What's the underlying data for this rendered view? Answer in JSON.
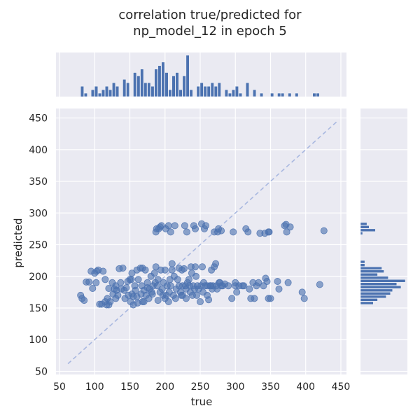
{
  "chart_data": {
    "type": "scatter",
    "title_lines": [
      "correlation true/predicted for",
      "np_model_12 in epoch 5"
    ],
    "xlabel": "true",
    "ylabel": "predicted",
    "xlim": [
      45,
      458
    ],
    "ylim": [
      45,
      465
    ],
    "xticks": [
      50,
      100,
      150,
      200,
      250,
      300,
      350,
      400,
      450
    ],
    "yticks": [
      50,
      100,
      150,
      200,
      250,
      300,
      350,
      400,
      450
    ],
    "grid": true,
    "identity_line": {
      "from": [
        62,
        62
      ],
      "to": [
        445,
        445
      ]
    },
    "colors": {
      "background": "#eaeaf2",
      "grid": "#ffffff",
      "points": "#4c72b0",
      "bars": "#4c72b0",
      "identity_line": "#a9b8e0",
      "text": "#262626"
    },
    "points": [
      [
        80,
        170
      ],
      [
        82,
        165
      ],
      [
        85,
        162
      ],
      [
        88,
        191
      ],
      [
        92,
        191
      ],
      [
        95,
        208
      ],
      [
        97,
        181
      ],
      [
        100,
        205
      ],
      [
        102,
        190
      ],
      [
        103,
        208
      ],
      [
        105,
        210
      ],
      [
        107,
        156
      ],
      [
        110,
        156
      ],
      [
        112,
        208
      ],
      [
        115,
        195
      ],
      [
        115,
        160
      ],
      [
        117,
        155
      ],
      [
        118,
        165
      ],
      [
        120,
        181
      ],
      [
        120,
        155
      ],
      [
        122,
        160
      ],
      [
        125,
        190
      ],
      [
        126,
        172
      ],
      [
        128,
        180
      ],
      [
        130,
        165
      ],
      [
        130,
        185
      ],
      [
        131,
        178
      ],
      [
        133,
        170
      ],
      [
        135,
        212
      ],
      [
        137,
        190
      ],
      [
        138,
        180
      ],
      [
        140,
        213
      ],
      [
        142,
        178
      ],
      [
        143,
        165
      ],
      [
        145,
        182
      ],
      [
        147,
        192
      ],
      [
        148,
        170
      ],
      [
        150,
        195
      ],
      [
        151,
        160
      ],
      [
        152,
        195
      ],
      [
        153,
        205
      ],
      [
        153,
        172
      ],
      [
        155,
        155
      ],
      [
        155,
        168
      ],
      [
        157,
        185
      ],
      [
        158,
        178
      ],
      [
        160,
        210
      ],
      [
        160,
        168
      ],
      [
        161,
        158
      ],
      [
        162,
        195
      ],
      [
        165,
        213
      ],
      [
        166,
        172
      ],
      [
        167,
        185
      ],
      [
        168,
        160
      ],
      [
        168,
        213
      ],
      [
        170,
        178
      ],
      [
        170,
        160
      ],
      [
        172,
        210
      ],
      [
        173,
        170
      ],
      [
        175,
        190
      ],
      [
        175,
        182
      ],
      [
        177,
        165
      ],
      [
        178,
        180
      ],
      [
        180,
        200
      ],
      [
        181,
        175
      ],
      [
        182,
        172
      ],
      [
        183,
        185
      ],
      [
        185,
        205
      ],
      [
        186,
        190
      ],
      [
        187,
        270
      ],
      [
        187,
        215
      ],
      [
        188,
        275
      ],
      [
        189,
        185
      ],
      [
        190,
        162
      ],
      [
        190,
        195
      ],
      [
        191,
        275
      ],
      [
        193,
        278
      ],
      [
        193,
        175
      ],
      [
        194,
        210
      ],
      [
        195,
        280
      ],
      [
        196,
        180
      ],
      [
        197,
        170
      ],
      [
        198,
        190
      ],
      [
        200,
        210
      ],
      [
        200,
        165
      ],
      [
        201,
        275
      ],
      [
        202,
        170
      ],
      [
        203,
        185
      ],
      [
        205,
        160
      ],
      [
        205,
        280
      ],
      [
        206,
        175
      ],
      [
        207,
        195
      ],
      [
        208,
        270
      ],
      [
        208,
        185
      ],
      [
        210,
        210
      ],
      [
        210,
        220
      ],
      [
        212,
        170
      ],
      [
        213,
        200
      ],
      [
        214,
        280
      ],
      [
        215,
        165
      ],
      [
        216,
        180
      ],
      [
        218,
        195
      ],
      [
        220,
        185
      ],
      [
        220,
        213
      ],
      [
        222,
        175
      ],
      [
        223,
        170
      ],
      [
        224,
        210
      ],
      [
        225,
        185
      ],
      [
        225,
        170
      ],
      [
        227,
        212
      ],
      [
        228,
        280
      ],
      [
        229,
        185
      ],
      [
        230,
        180
      ],
      [
        230,
        165
      ],
      [
        231,
        270
      ],
      [
        232,
        190
      ],
      [
        234,
        195
      ],
      [
        235,
        185
      ],
      [
        236,
        175
      ],
      [
        237,
        215
      ],
      [
        238,
        205
      ],
      [
        239,
        170
      ],
      [
        240,
        185
      ],
      [
        241,
        280
      ],
      [
        242,
        180
      ],
      [
        243,
        215
      ],
      [
        243,
        275
      ],
      [
        244,
        200
      ],
      [
        245,
        170
      ],
      [
        246,
        185
      ],
      [
        248,
        180
      ],
      [
        250,
        160
      ],
      [
        251,
        185
      ],
      [
        252,
        283
      ],
      [
        253,
        215
      ],
      [
        254,
        175
      ],
      [
        255,
        190
      ],
      [
        256,
        275
      ],
      [
        257,
        185
      ],
      [
        258,
        280
      ],
      [
        260,
        170
      ],
      [
        260,
        185
      ],
      [
        262,
        163
      ],
      [
        264,
        185
      ],
      [
        265,
        185
      ],
      [
        266,
        210
      ],
      [
        267,
        180
      ],
      [
        268,
        185
      ],
      [
        270,
        270
      ],
      [
        270,
        215
      ],
      [
        272,
        220
      ],
      [
        273,
        185
      ],
      [
        274,
        180
      ],
      [
        275,
        270
      ],
      [
        276,
        275
      ],
      [
        277,
        190
      ],
      [
        278,
        190
      ],
      [
        280,
        185
      ],
      [
        280,
        272
      ],
      [
        282,
        185
      ],
      [
        285,
        188
      ],
      [
        290,
        185
      ],
      [
        295,
        165
      ],
      [
        297,
        270
      ],
      [
        300,
        185
      ],
      [
        300,
        190
      ],
      [
        302,
        175
      ],
      [
        305,
        185
      ],
      [
        310,
        185
      ],
      [
        312,
        185
      ],
      [
        315,
        275
      ],
      [
        318,
        270
      ],
      [
        320,
        180
      ],
      [
        322,
        165
      ],
      [
        325,
        190
      ],
      [
        327,
        165
      ],
      [
        330,
        185
      ],
      [
        333,
        190
      ],
      [
        335,
        268
      ],
      [
        340,
        185
      ],
      [
        342,
        268
      ],
      [
        343,
        197
      ],
      [
        345,
        192
      ],
      [
        347,
        270
      ],
      [
        348,
        270
      ],
      [
        347,
        165
      ],
      [
        350,
        165
      ],
      [
        360,
        192
      ],
      [
        362,
        180
      ],
      [
        370,
        280
      ],
      [
        372,
        282
      ],
      [
        373,
        270
      ],
      [
        375,
        190
      ],
      [
        378,
        278
      ],
      [
        395,
        175
      ],
      [
        398,
        165
      ],
      [
        420,
        187
      ],
      [
        426,
        272
      ]
    ],
    "marginal_x": {
      "bins": [
        80,
        85,
        90,
        95,
        100,
        105,
        110,
        115,
        120,
        125,
        130,
        135,
        140,
        145,
        150,
        155,
        160,
        165,
        170,
        175,
        180,
        185,
        190,
        195,
        200,
        205,
        210,
        215,
        220,
        225,
        230,
        235,
        240,
        245,
        250,
        255,
        260,
        265,
        270,
        275,
        280,
        285,
        290,
        295,
        300,
        305,
        310,
        315,
        320,
        325,
        330,
        335,
        340,
        345,
        350,
        355,
        360,
        365,
        370,
        375,
        380,
        385,
        390,
        395,
        400,
        405,
        410,
        415,
        420,
        425,
        430
      ],
      "counts": [
        3,
        1,
        0,
        2,
        3,
        1,
        2,
        3,
        2,
        4,
        3,
        0,
        5,
        4,
        0,
        7,
        6,
        8,
        4,
        4,
        3,
        8,
        9,
        10,
        7,
        2,
        6,
        7,
        2,
        6,
        12,
        2,
        0,
        3,
        4,
        3,
        3,
        4,
        3,
        4,
        0,
        2,
        1,
        2,
        3,
        1,
        0,
        4,
        0,
        2,
        0,
        1,
        0,
        0,
        1,
        0,
        1,
        1,
        0,
        1,
        0,
        1,
        0,
        0,
        0,
        0,
        1,
        1,
        0,
        0,
        0
      ]
    },
    "marginal_y": {
      "bins": [
        155,
        160,
        165,
        170,
        175,
        180,
        185,
        190,
        195,
        200,
        205,
        210,
        215,
        220,
        225,
        230,
        235,
        240,
        245,
        250,
        255,
        260,
        265,
        270,
        275,
        280,
        285
      ],
      "counts": [
        6,
        8,
        12,
        14,
        15,
        19,
        17,
        21,
        13,
        8,
        11,
        10,
        2,
        2,
        0,
        0,
        0,
        0,
        0,
        0,
        0,
        0,
        1,
        7,
        4,
        3,
        0
      ]
    }
  }
}
